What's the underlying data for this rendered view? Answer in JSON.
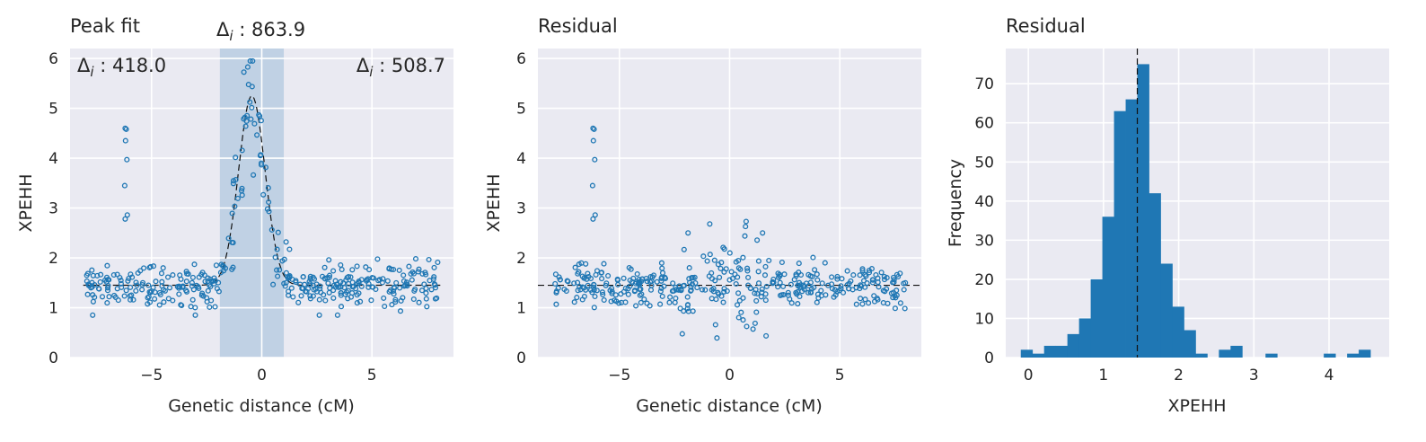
{
  "chart_data": [
    {
      "type": "scatter",
      "title": "Peak fit",
      "xlabel": "Genetic distance (cM)",
      "ylabel": "XPEHH",
      "xlim": [
        -8.7,
        8.7
      ],
      "ylim": [
        0,
        6.2
      ],
      "xticks": [
        {
          "v": -5,
          "t": "−5"
        },
        {
          "v": 0,
          "t": "0"
        },
        {
          "v": 5,
          "t": "5"
        }
      ],
      "yticks": [
        0,
        1,
        2,
        3,
        4,
        5,
        6
      ],
      "grid": true,
      "shaded_region": [
        -1.9,
        1.0
      ],
      "shaded_color": "#b9cde2",
      "marker_color": "#1f77b4",
      "fit_curve": {
        "baseline": 1.45,
        "peak": 5.25,
        "center": -0.45,
        "width": 0.85
      },
      "annotations": [
        "Δi : 863.9",
        "Δi : 418.0",
        "Δi : 508.7"
      ],
      "outliers": [
        [
          -6.2,
          4.6
        ],
        [
          -6.15,
          4.58
        ],
        [
          -6.18,
          4.35
        ],
        [
          -6.12,
          3.97
        ],
        [
          -6.22,
          3.45
        ],
        [
          -6.2,
          2.78
        ],
        [
          -6.1,
          2.86
        ]
      ],
      "background_noise_sd": 0.22,
      "peak_noise_sd": 0.45
    },
    {
      "type": "scatter",
      "title": "Residual",
      "xlabel": "Genetic distance (cM)",
      "ylabel": "XPEHH",
      "xlim": [
        -8.7,
        8.7
      ],
      "ylim": [
        0,
        6.2
      ],
      "xticks": [
        {
          "v": -5,
          "t": "−5"
        },
        {
          "v": 0,
          "t": "0"
        },
        {
          "v": 5,
          "t": "5"
        }
      ],
      "yticks": [
        0,
        1,
        2,
        3,
        4,
        5,
        6
      ],
      "grid": true,
      "hline": 1.45,
      "marker_color": "#1f77b4",
      "outliers": [
        [
          -6.2,
          4.6
        ],
        [
          -6.15,
          4.58
        ],
        [
          -6.18,
          4.35
        ],
        [
          -6.12,
          3.97
        ],
        [
          -6.22,
          3.45
        ],
        [
          -6.2,
          2.78
        ],
        [
          -6.1,
          2.86
        ],
        [
          -0.9,
          2.68
        ],
        [
          0.75,
          2.73
        ],
        [
          0.72,
          2.63
        ]
      ],
      "background_noise_sd": 0.22,
      "center_noise_sd": 0.42
    },
    {
      "type": "bar",
      "title": "Residual",
      "xlabel": "XPEHH",
      "ylabel": "Frequency",
      "xlim": [
        -0.3,
        4.8
      ],
      "ylim": [
        0,
        79
      ],
      "xticks": [
        {
          "v": 0,
          "t": "0"
        },
        {
          "v": 1,
          "t": "1"
        },
        {
          "v": 2,
          "t": "2"
        },
        {
          "v": 3,
          "t": "3"
        },
        {
          "v": 4,
          "t": "4"
        }
      ],
      "yticks": [
        0,
        10,
        20,
        30,
        40,
        50,
        60,
        70
      ],
      "grid": true,
      "vline": 1.45,
      "bar_color": "#1f77b4",
      "bin_start": -0.1,
      "bin_width": 0.155,
      "counts": [
        2,
        1,
        3,
        3,
        6,
        10,
        20,
        36,
        63,
        66,
        75,
        42,
        24,
        13,
        7,
        1,
        0,
        2,
        3,
        0,
        0,
        1,
        0,
        0,
        0,
        0,
        1,
        0,
        1,
        2
      ]
    }
  ]
}
